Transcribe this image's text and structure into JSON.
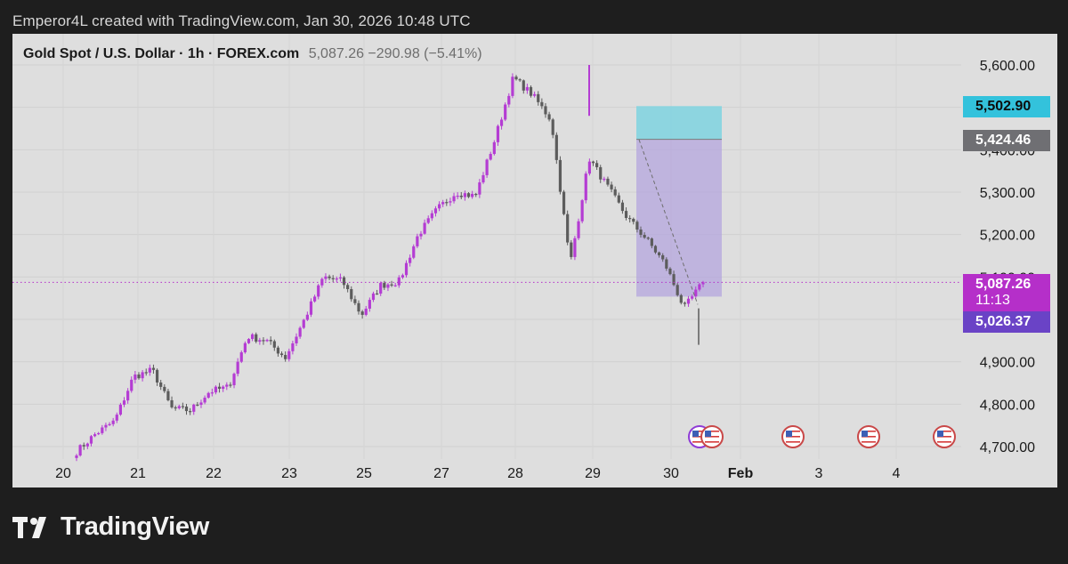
{
  "banner": "Emperor4L created with TradingView.com, Jan 30, 2026 10:48 UTC",
  "legend": {
    "symbol": "Gold Spot / U.S. Dollar · 1h · FOREX.com",
    "values": "5,087.26  −290.98 (−5.41%)"
  },
  "price_tags": {
    "target": "5,502.90",
    "entry": "5,424.46",
    "last_price": "5,087.26",
    "countdown": "11:13",
    "low_tag": "5,026.37"
  },
  "colors": {
    "background": "#1e1e1e",
    "chart_bg": "#dedede",
    "up_candle": "#b43cd3",
    "down_candle": "#5c5c5c",
    "profit_zone": "#7fd3e0",
    "loss_zone": "#b4a5de",
    "last_price": "#b52fc9",
    "low_tag": "#6a43c6",
    "entry_tag": "#6f6f73",
    "target_tag": "#33c2dc"
  },
  "footer": {
    "brand": "TradingView",
    "icon": "tradingview-logo-icon"
  },
  "event_markers": [
    "us-flag-icon",
    "us-flag-icon",
    "us-flag-icon",
    "us-flag-icon",
    "us-flag-icon"
  ],
  "chart_data": {
    "type": "candlestick",
    "title": "Gold Spot / U.S. Dollar",
    "xlabel": "",
    "ylabel": "",
    "y_ticks": [
      "4,700.00",
      "4,800.00",
      "4,900.00",
      "5,000.00",
      "5,100.00",
      "5,200.00",
      "5,300.00",
      "5,400.00",
      "5,500.00",
      "5,600.00"
    ],
    "x_ticks": [
      "20",
      "21",
      "22",
      "23",
      "25",
      "27",
      "28",
      "29",
      "30",
      "Feb",
      "3",
      "4"
    ],
    "ylim": [
      4680,
      5630
    ],
    "grid": true,
    "approx_close_path": [
      [
        "Jan 20",
        4688
      ],
      [
        "Jan 20",
        4730
      ],
      [
        "Jan 21",
        4760
      ],
      [
        "Jan 21",
        4865
      ],
      [
        "Jan 21",
        4880
      ],
      [
        "Jan 22",
        4790
      ],
      [
        "Jan 22",
        4785
      ],
      [
        "Jan 22",
        4830
      ],
      [
        "Jan 23",
        4840
      ],
      [
        "Jan 23",
        4960
      ],
      [
        "Jan 25",
        4950
      ],
      [
        "Jan 25",
        4910
      ],
      [
        "Jan 25",
        5000
      ],
      [
        "Jan 25",
        5100
      ],
      [
        "Jan 26",
        5090
      ],
      [
        "Jan 27",
        5010
      ],
      [
        "Jan 27",
        5080
      ],
      [
        "Jan 28",
        5090
      ],
      [
        "Jan 28",
        5200
      ],
      [
        "Jan 28",
        5260
      ],
      [
        "Jan 28",
        5300
      ],
      [
        "Jan 29",
        5290
      ],
      [
        "Jan 29",
        5420
      ],
      [
        "Jan 29",
        5570
      ],
      [
        "Jan 29",
        5530
      ],
      [
        "Jan 29",
        5470
      ],
      [
        "Jan 30",
        5130
      ],
      [
        "Jan 30",
        5380
      ],
      [
        "Jan 30",
        5310
      ],
      [
        "Jan 30",
        5240
      ],
      [
        "Jan 30",
        5190
      ],
      [
        "Jan 30",
        5130
      ],
      [
        "Jan 30",
        5026
      ],
      [
        "Jan 30",
        5087
      ]
    ],
    "last_price": 5087.26,
    "change": -290.98,
    "change_pct": -5.41,
    "position_tool": {
      "entry": 5424.46,
      "target": 5502.9,
      "stop_zone_low": 5026.37
    }
  }
}
